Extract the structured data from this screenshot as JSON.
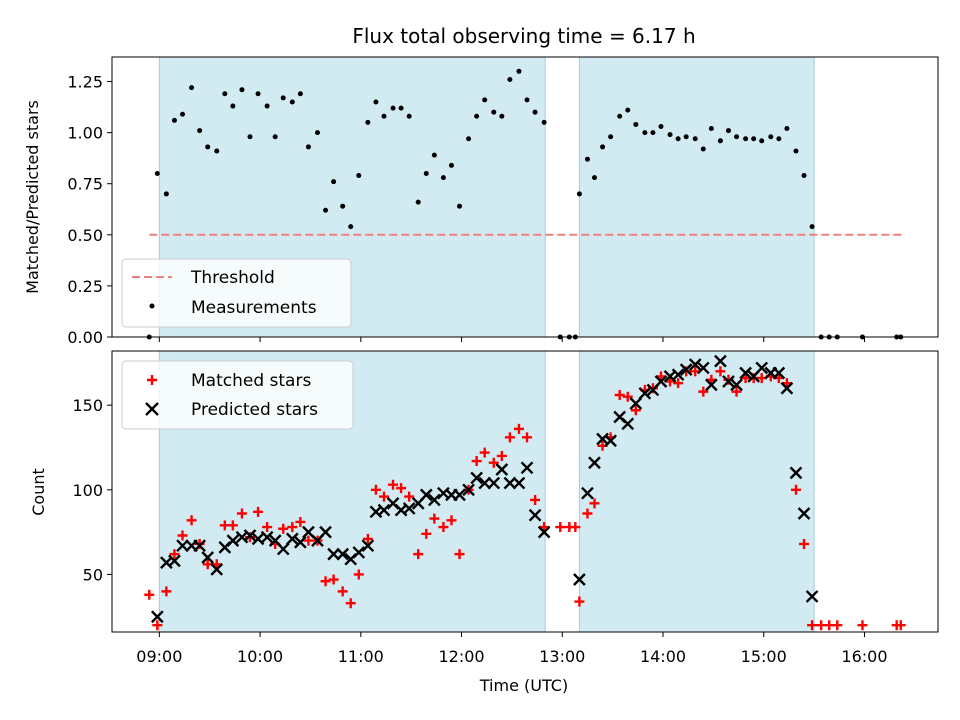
{
  "chart_data": [
    {
      "type": "scatter",
      "title": "Flux total observing time = 6.17 h",
      "xlabel": "",
      "ylabel": "Matched/Predicted stars",
      "xlim": [
        8.53,
        16.73
      ],
      "ylim": [
        0,
        1.37
      ],
      "yticks": [
        0.0,
        0.25,
        0.5,
        0.75,
        1.0,
        1.25
      ],
      "ytick_labels": [
        "0.00",
        "0.25",
        "0.50",
        "0.75",
        "1.00",
        "1.25"
      ],
      "shaded_intervals": [
        [
          9.0,
          12.83
        ],
        [
          13.17,
          15.5
        ]
      ],
      "shade_color": "#add8e6",
      "threshold": {
        "name": "Threshold",
        "y": 0.5,
        "x_range": [
          8.9,
          16.4
        ],
        "color": "#f08080",
        "style": "dashed"
      },
      "legend": {
        "placement": "lower-left",
        "entries": [
          "Threshold",
          "Measurements"
        ]
      },
      "series": [
        {
          "name": "Measurements",
          "color": "#000000",
          "marker": "dot",
          "points": [
            [
              8.9,
              0.0
            ],
            [
              8.98,
              0.8
            ],
            [
              9.07,
              0.7
            ],
            [
              9.15,
              1.06
            ],
            [
              9.23,
              1.09
            ],
            [
              9.32,
              1.22
            ],
            [
              9.4,
              1.01
            ],
            [
              9.48,
              0.93
            ],
            [
              9.57,
              0.91
            ],
            [
              9.65,
              1.19
            ],
            [
              9.73,
              1.13
            ],
            [
              9.82,
              1.21
            ],
            [
              9.9,
              0.98
            ],
            [
              9.98,
              1.19
            ],
            [
              10.07,
              1.13
            ],
            [
              10.15,
              0.98
            ],
            [
              10.23,
              1.17
            ],
            [
              10.32,
              1.15
            ],
            [
              10.4,
              1.19
            ],
            [
              10.48,
              0.93
            ],
            [
              10.57,
              1.0
            ],
            [
              10.65,
              0.62
            ],
            [
              10.73,
              0.76
            ],
            [
              10.82,
              0.64
            ],
            [
              10.9,
              0.54
            ],
            [
              10.98,
              0.79
            ],
            [
              11.07,
              1.05
            ],
            [
              11.15,
              1.15
            ],
            [
              11.23,
              1.08
            ],
            [
              11.32,
              1.12
            ],
            [
              11.4,
              1.12
            ],
            [
              11.48,
              1.08
            ],
            [
              11.57,
              0.66
            ],
            [
              11.65,
              0.8
            ],
            [
              11.73,
              0.89
            ],
            [
              11.82,
              0.78
            ],
            [
              11.9,
              0.84
            ],
            [
              11.98,
              0.64
            ],
            [
              12.07,
              0.97
            ],
            [
              12.15,
              1.08
            ],
            [
              12.23,
              1.16
            ],
            [
              12.32,
              1.1
            ],
            [
              12.4,
              1.08
            ],
            [
              12.48,
              1.26
            ],
            [
              12.57,
              1.3
            ],
            [
              12.65,
              1.16
            ],
            [
              12.73,
              1.1
            ],
            [
              12.82,
              1.05
            ],
            [
              12.98,
              0.0
            ],
            [
              13.07,
              0.0
            ],
            [
              13.13,
              0.0
            ],
            [
              13.17,
              0.7
            ],
            [
              13.25,
              0.87
            ],
            [
              13.32,
              0.78
            ],
            [
              13.4,
              0.93
            ],
            [
              13.48,
              0.98
            ],
            [
              13.57,
              1.08
            ],
            [
              13.65,
              1.11
            ],
            [
              13.73,
              1.04
            ],
            [
              13.82,
              1.0
            ],
            [
              13.9,
              1.0
            ],
            [
              13.98,
              1.03
            ],
            [
              14.07,
              0.99
            ],
            [
              14.15,
              0.97
            ],
            [
              14.23,
              0.98
            ],
            [
              14.32,
              0.97
            ],
            [
              14.4,
              0.92
            ],
            [
              14.48,
              1.02
            ],
            [
              14.57,
              0.96
            ],
            [
              14.65,
              1.01
            ],
            [
              14.73,
              0.98
            ],
            [
              14.82,
              0.97
            ],
            [
              14.9,
              0.97
            ],
            [
              14.98,
              0.96
            ],
            [
              15.07,
              0.98
            ],
            [
              15.15,
              0.97
            ],
            [
              15.23,
              1.02
            ],
            [
              15.32,
              0.91
            ],
            [
              15.4,
              0.79
            ],
            [
              15.48,
              0.54
            ],
            [
              15.57,
              0.0
            ],
            [
              15.65,
              0.0
            ],
            [
              15.73,
              0.0
            ],
            [
              15.98,
              0.0
            ],
            [
              16.32,
              0.0
            ],
            [
              16.36,
              0.0
            ]
          ]
        }
      ]
    },
    {
      "type": "scatter",
      "title": "",
      "xlabel": "Time (UTC)",
      "ylabel": "Count",
      "xlim": [
        8.53,
        16.73
      ],
      "ylim": [
        16,
        182
      ],
      "xticks": [
        9,
        10,
        11,
        12,
        13,
        14,
        15,
        16
      ],
      "xtick_labels": [
        "09:00",
        "10:00",
        "11:00",
        "12:00",
        "13:00",
        "14:00",
        "15:00",
        "16:00"
      ],
      "yticks": [
        50,
        100,
        150
      ],
      "ytick_labels": [
        "50",
        "100",
        "150"
      ],
      "shaded_intervals": [
        [
          9.0,
          12.83
        ],
        [
          13.17,
          15.5
        ]
      ],
      "shade_color": "#add8e6",
      "legend": {
        "placement": "top-left",
        "entries": [
          "Matched stars",
          "Predicted stars"
        ]
      },
      "series": [
        {
          "name": "Matched stars",
          "color": "#ff0000",
          "marker": "plus",
          "points": [
            [
              8.9,
              38
            ],
            [
              8.98,
              20
            ],
            [
              9.07,
              40
            ],
            [
              9.15,
              62
            ],
            [
              9.23,
              73
            ],
            [
              9.32,
              82
            ],
            [
              9.4,
              68
            ],
            [
              9.48,
              56
            ],
            [
              9.57,
              56
            ],
            [
              9.65,
              79
            ],
            [
              9.73,
              79
            ],
            [
              9.82,
              86
            ],
            [
              9.9,
              72
            ],
            [
              9.98,
              87
            ],
            [
              10.07,
              78
            ],
            [
              10.15,
              68
            ],
            [
              10.23,
              77
            ],
            [
              10.32,
              78
            ],
            [
              10.4,
              81
            ],
            [
              10.48,
              70
            ],
            [
              10.57,
              70
            ],
            [
              10.65,
              46
            ],
            [
              10.73,
              47
            ],
            [
              10.82,
              40
            ],
            [
              10.9,
              33
            ],
            [
              10.98,
              50
            ],
            [
              11.07,
              71
            ],
            [
              11.15,
              100
            ],
            [
              11.23,
              96
            ],
            [
              11.32,
              103
            ],
            [
              11.4,
              101
            ],
            [
              11.48,
              96
            ],
            [
              11.57,
              62
            ],
            [
              11.65,
              74
            ],
            [
              11.73,
              83
            ],
            [
              11.82,
              78
            ],
            [
              11.9,
              82
            ],
            [
              11.98,
              62
            ],
            [
              12.07,
              100
            ],
            [
              12.15,
              117
            ],
            [
              12.23,
              122
            ],
            [
              12.32,
              116
            ],
            [
              12.4,
              120
            ],
            [
              12.48,
              131
            ],
            [
              12.57,
              136
            ],
            [
              12.65,
              131
            ],
            [
              12.73,
              94
            ],
            [
              12.82,
              78
            ],
            [
              12.98,
              78
            ],
            [
              13.07,
              78
            ],
            [
              13.13,
              78
            ],
            [
              13.17,
              34
            ],
            [
              13.25,
              86
            ],
            [
              13.32,
              92
            ],
            [
              13.4,
              126
            ],
            [
              13.48,
              131
            ],
            [
              13.57,
              156
            ],
            [
              13.65,
              155
            ],
            [
              13.73,
              147
            ],
            [
              13.82,
              159
            ],
            [
              13.9,
              160
            ],
            [
              13.98,
              167
            ],
            [
              14.07,
              164
            ],
            [
              14.15,
              163
            ],
            [
              14.23,
              170
            ],
            [
              14.32,
              170
            ],
            [
              14.4,
              158
            ],
            [
              14.48,
              165
            ],
            [
              14.57,
              170
            ],
            [
              14.65,
              165
            ],
            [
              14.73,
              158
            ],
            [
              14.82,
              166
            ],
            [
              14.9,
              166
            ],
            [
              14.98,
              166
            ],
            [
              15.07,
              167
            ],
            [
              15.15,
              166
            ],
            [
              15.23,
              163
            ],
            [
              15.32,
              100
            ],
            [
              15.4,
              68
            ],
            [
              15.48,
              20
            ],
            [
              15.57,
              20
            ],
            [
              15.65,
              20
            ],
            [
              15.73,
              20
            ],
            [
              15.98,
              20
            ],
            [
              16.32,
              20
            ],
            [
              16.36,
              20
            ]
          ]
        },
        {
          "name": "Predicted stars",
          "color": "#000000",
          "marker": "x",
          "points": [
            [
              8.98,
              25
            ],
            [
              9.07,
              57
            ],
            [
              9.15,
              58
            ],
            [
              9.23,
              67
            ],
            [
              9.32,
              67
            ],
            [
              9.4,
              67
            ],
            [
              9.48,
              60
            ],
            [
              9.57,
              53
            ],
            [
              9.65,
              66
            ],
            [
              9.73,
              70
            ],
            [
              9.82,
              72
            ],
            [
              9.9,
              73
            ],
            [
              9.98,
              71
            ],
            [
              10.07,
              72
            ],
            [
              10.15,
              70
            ],
            [
              10.23,
              65
            ],
            [
              10.32,
              71
            ],
            [
              10.4,
              69
            ],
            [
              10.48,
              75
            ],
            [
              10.57,
              70
            ],
            [
              10.65,
              75
            ],
            [
              10.73,
              62
            ],
            [
              10.82,
              62
            ],
            [
              10.9,
              59
            ],
            [
              10.98,
              63
            ],
            [
              11.07,
              67
            ],
            [
              11.15,
              87
            ],
            [
              11.23,
              88
            ],
            [
              11.32,
              92
            ],
            [
              11.4,
              88
            ],
            [
              11.48,
              89
            ],
            [
              11.57,
              92
            ],
            [
              11.65,
              97
            ],
            [
              11.73,
              94
            ],
            [
              11.82,
              98
            ],
            [
              11.9,
              97
            ],
            [
              11.98,
              97
            ],
            [
              12.07,
              100
            ],
            [
              12.15,
              107
            ],
            [
              12.23,
              104
            ],
            [
              12.32,
              104
            ],
            [
              12.4,
              112
            ],
            [
              12.48,
              104
            ],
            [
              12.57,
              104
            ],
            [
              12.65,
              113
            ],
            [
              12.73,
              85
            ],
            [
              12.82,
              75
            ],
            [
              13.17,
              47
            ],
            [
              13.25,
              98
            ],
            [
              13.32,
              116
            ],
            [
              13.4,
              130
            ],
            [
              13.48,
              129
            ],
            [
              13.57,
              143
            ],
            [
              13.65,
              139
            ],
            [
              13.73,
              151
            ],
            [
              13.82,
              157
            ],
            [
              13.9,
              159
            ],
            [
              13.98,
              164
            ],
            [
              14.07,
              167
            ],
            [
              14.15,
              168
            ],
            [
              14.23,
              171
            ],
            [
              14.32,
              174
            ],
            [
              14.4,
              172
            ],
            [
              14.48,
              162
            ],
            [
              14.57,
              176
            ],
            [
              14.65,
              164
            ],
            [
              14.73,
              162
            ],
            [
              14.82,
              169
            ],
            [
              14.9,
              167
            ],
            [
              14.98,
              172
            ],
            [
              15.07,
              169
            ],
            [
              15.15,
              169
            ],
            [
              15.23,
              160
            ],
            [
              15.32,
              110
            ],
            [
              15.4,
              86
            ],
            [
              15.48,
              37
            ]
          ]
        }
      ]
    }
  ]
}
